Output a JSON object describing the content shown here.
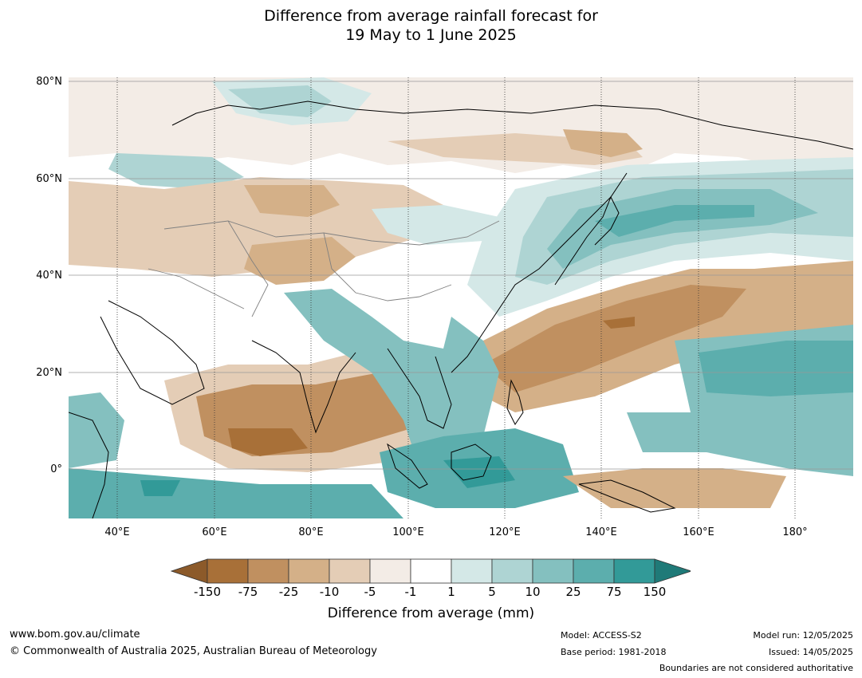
{
  "title_line1": "Difference from average rainfall forecast for",
  "title_line2": "19 May to 1 June 2025",
  "map": {
    "lat_labels": [
      "80°N",
      "60°N",
      "40°N",
      "20°N",
      "0°"
    ],
    "lon_labels": [
      "40°E",
      "60°E",
      "80°E",
      "100°E",
      "120°E",
      "140°E",
      "160°E",
      "180°"
    ],
    "colors": {
      "land_boundary": "#000000",
      "country_boundary": "#808080",
      "gridline": "#999999"
    }
  },
  "colorbar": {
    "title": "Difference from average (mm)",
    "ticks": [
      "-150",
      "-75",
      "-25",
      "-10",
      "-5",
      "-1",
      "1",
      "5",
      "10",
      "25",
      "75",
      "150"
    ],
    "colors": [
      "#8c5a2a",
      "#a87038",
      "#c09060",
      "#d4b088",
      "#e4cdb6",
      "#f3ece6",
      "#ffffff",
      "#d4e8e7",
      "#aed4d3",
      "#84c0bf",
      "#5caead",
      "#329a98",
      "#1f7a78"
    ]
  },
  "footer": {
    "website": "www.bom.gov.au/climate",
    "copyright": "© Commonwealth of Australia 2025, Australian Bureau of Meteorology",
    "model": "Model: ACCESS-S2",
    "base_period": "Base period: 1981-2018",
    "model_run": "Model run: 12/05/2025",
    "issued": "Issued: 14/05/2025",
    "disclaimer": "Boundaries are not considered authoritative"
  }
}
